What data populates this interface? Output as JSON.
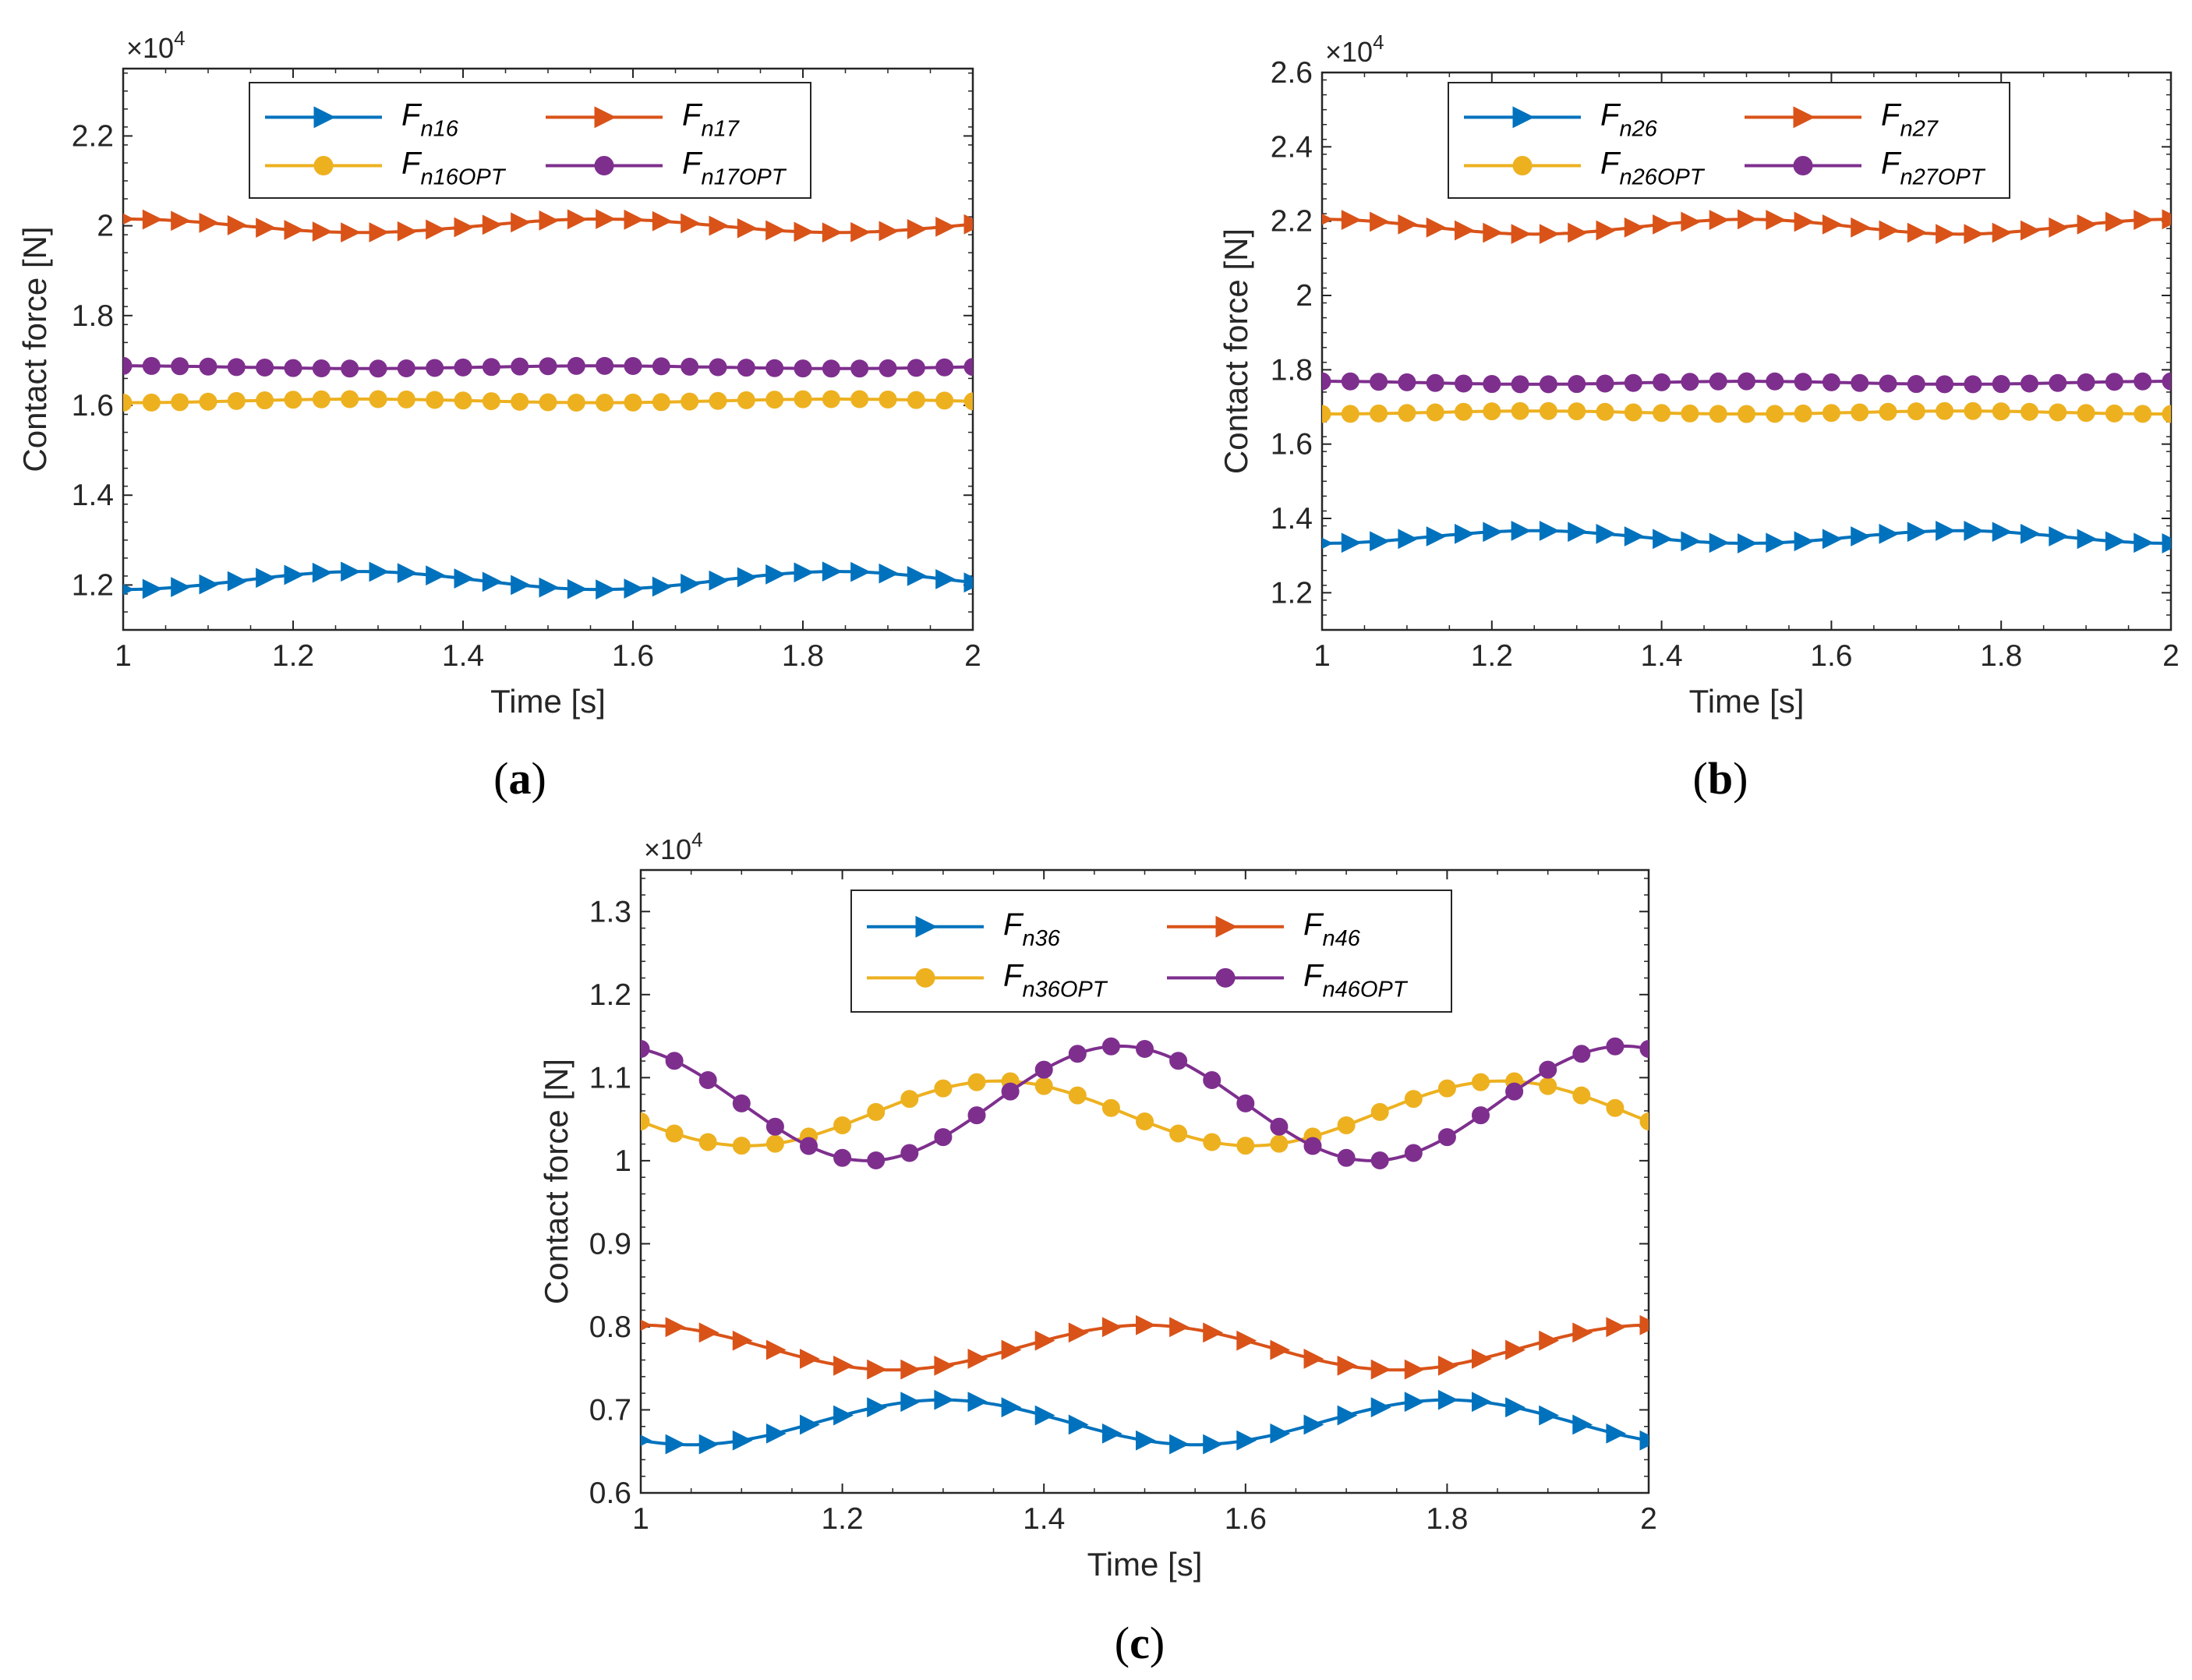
{
  "chart_data": [
    {
      "type": "line",
      "caption": "a",
      "xlabel": "Time [s]",
      "ylabel": "Contact force [N]",
      "exponent_label": "×10",
      "exponent_power": "4",
      "xlim": [
        1,
        2
      ],
      "ylim": [
        1.1,
        2.35
      ],
      "xticks": [
        "1",
        "1.2",
        "1.4",
        "1.6",
        "1.8",
        "2"
      ],
      "yticks": [
        "1.2",
        "1.4",
        "1.6",
        "1.8",
        "2",
        "2.2"
      ],
      "series": [
        {
          "name": "Fn16",
          "main": "F",
          "sub": "n16",
          "color": "#0072BD",
          "marker": "triangle-right",
          "base": 1.21,
          "amp": 0.02,
          "period": 0.56,
          "phase": 1.0,
          "flip": -1
        },
        {
          "name": "Fn17",
          "main": "F",
          "sub": "n17",
          "color": "#D95319",
          "marker": "triangle-right",
          "base": 2.0,
          "amp": 0.015,
          "period": 0.56,
          "phase": 1.0,
          "flip": 1
        },
        {
          "name": "Fn16OPT",
          "main": "F",
          "sub": "n16OPT",
          "color": "#EDB120",
          "marker": "circle",
          "base": 1.61,
          "amp": 0.004,
          "period": 0.56,
          "phase": 1.0,
          "flip": -1
        },
        {
          "name": "Fn17OPT",
          "main": "F",
          "sub": "n17OPT",
          "color": "#7E2F8E",
          "marker": "circle",
          "base": 1.685,
          "amp": 0.003,
          "period": 0.56,
          "phase": 1.0,
          "flip": 1
        }
      ]
    },
    {
      "type": "line",
      "caption": "b",
      "xlabel": "Time [s]",
      "ylabel": "Contact force [N]",
      "exponent_label": "×10",
      "exponent_power": "4",
      "xlim": [
        1,
        2
      ],
      "ylim": [
        1.1,
        2.6
      ],
      "xticks": [
        "1",
        "1.2",
        "1.4",
        "1.6",
        "1.8",
        "2"
      ],
      "yticks": [
        "1.2",
        "1.4",
        "1.6",
        "1.8",
        "2",
        "2.2",
        "2.4",
        "2.6"
      ],
      "series": [
        {
          "name": "Fn26",
          "main": "F",
          "sub": "n26",
          "color": "#0072BD",
          "marker": "triangle-right",
          "base": 1.35,
          "amp": 0.017,
          "period": 0.5,
          "phase": 1.0,
          "flip": -1
        },
        {
          "name": "Fn27",
          "main": "F",
          "sub": "n27",
          "color": "#D95319",
          "marker": "triangle-right",
          "base": 2.185,
          "amp": 0.02,
          "period": 0.5,
          "phase": 1.0,
          "flip": 1
        },
        {
          "name": "Fn26OPT",
          "main": "F",
          "sub": "n26OPT",
          "color": "#EDB120",
          "marker": "circle",
          "base": 1.685,
          "amp": 0.004,
          "period": 0.5,
          "phase": 1.0,
          "flip": -1
        },
        {
          "name": "Fn27OPT",
          "main": "F",
          "sub": "n27OPT",
          "color": "#7E2F8E",
          "marker": "circle",
          "base": 1.765,
          "amp": 0.004,
          "period": 0.5,
          "phase": 1.0,
          "flip": 1
        }
      ]
    },
    {
      "type": "line",
      "caption": "c",
      "xlabel": "Time [s]",
      "ylabel": "Contact force [N]",
      "exponent_label": "×10",
      "exponent_power": "4",
      "xlim": [
        1,
        2
      ],
      "ylim": [
        0.6,
        1.35
      ],
      "xticks": [
        "1",
        "1.2",
        "1.4",
        "1.6",
        "1.8",
        "2"
      ],
      "yticks": [
        "0.6",
        "0.7",
        "0.8",
        "0.9",
        "1",
        "1.1",
        "1.2",
        "1.3"
      ],
      "series": [
        {
          "name": "Fn36",
          "main": "F",
          "sub": "n36",
          "color": "#0072BD",
          "marker": "triangle-right",
          "base": 0.685,
          "amp": 0.027,
          "period": 0.5,
          "phase": 1.05,
          "flip": -1
        },
        {
          "name": "Fn46",
          "main": "F",
          "sub": "n46",
          "color": "#D95319",
          "marker": "triangle-right",
          "base": 0.775,
          "amp": 0.027,
          "period": 0.5,
          "phase": 1.0,
          "flip": 1
        },
        {
          "name": "Fn36OPT",
          "main": "F",
          "sub": "n36OPT",
          "color": "#EDB120",
          "marker": "circle",
          "base": 1.057,
          "amp": 0.039,
          "period": 0.5,
          "phase": 1.105,
          "flip": -1
        },
        {
          "name": "Fn46OPT",
          "main": "F",
          "sub": "n46OPT",
          "color": "#7E2F8E",
          "marker": "circle",
          "base": 1.069,
          "amp": 0.069,
          "period": 0.5,
          "phase": 0.975,
          "flip": 1
        }
      ]
    }
  ]
}
